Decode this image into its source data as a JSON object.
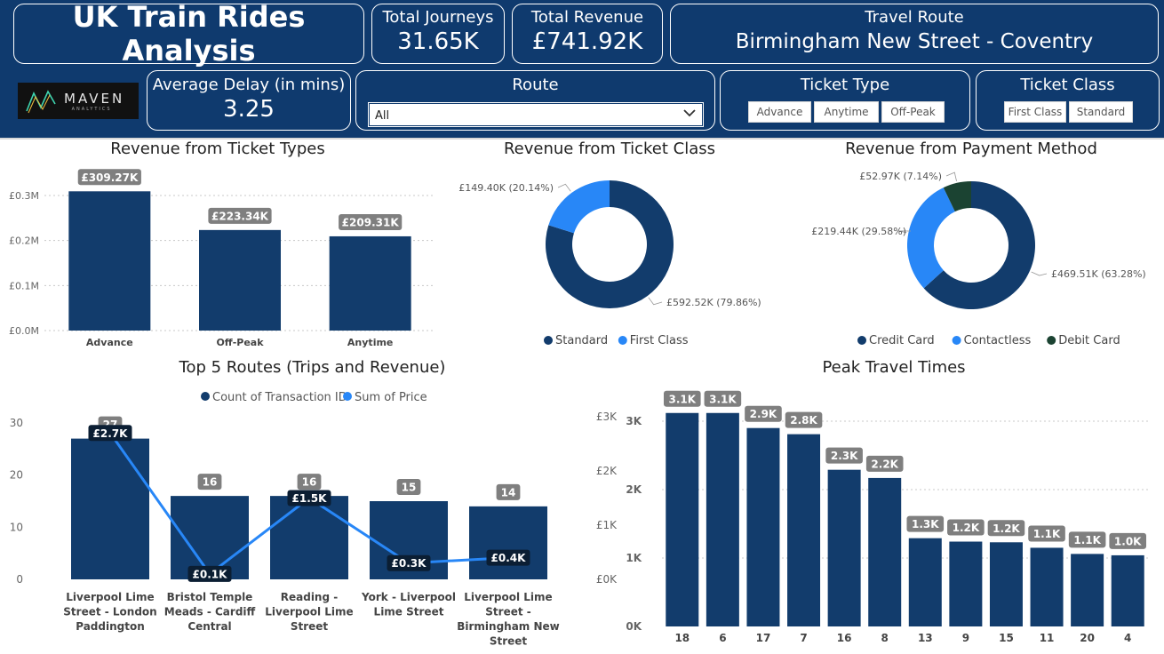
{
  "header": {
    "title": "UK Train Rides Analysis",
    "kpis": {
      "journeys_label": "Total Journeys",
      "journeys_value": "31.65K",
      "revenue_label": "Total Revenue",
      "revenue_value": "£741.92K",
      "route_label": "Travel Route",
      "route_value": "Birmingham New Street - Coventry",
      "delay_label": "Average Delay (in mins)",
      "delay_value": "3.25"
    },
    "logo": {
      "main": "MAVEN",
      "sub": "ANALYTICS",
      "icon": "maven-logo-icon"
    },
    "route_slicer": {
      "label": "Route",
      "selected": "All",
      "icon": "chevron-down-icon"
    },
    "ticket_type_slicer": {
      "label": "Ticket Type",
      "options": [
        "Advance",
        "Anytime",
        "Off-Peak"
      ]
    },
    "ticket_class_slicer": {
      "label": "Ticket Class",
      "options": [
        "First Class",
        "Standard"
      ]
    }
  },
  "colors": {
    "primary": "#0f3a6e",
    "dark_navy": "#123c6c",
    "accent_blue": "#2887f7",
    "dark_green": "#1b4332",
    "label_grey": "#7f7f7f"
  },
  "chart_data": [
    {
      "type": "bar",
      "title": "Revenue from Ticket Types",
      "categories": [
        "Advance",
        "Off-Peak",
        "Anytime"
      ],
      "values": [
        309270,
        223340,
        209310
      ],
      "data_labels": [
        "£309.27K",
        "£223.34K",
        "£209.31K"
      ],
      "y_ticks": [
        "£0.0M",
        "£0.1M",
        "£0.2M",
        "£0.3M"
      ],
      "ylim": [
        0,
        320000
      ],
      "grid": true
    },
    {
      "type": "pie",
      "title": "Revenue from Ticket Class",
      "labels": [
        "Standard",
        "First Class"
      ],
      "values": [
        592520,
        149400
      ],
      "data_labels": [
        "£592.52K (79.86%)",
        "£149.40K (20.14%)"
      ],
      "colors": [
        "#123c6c",
        "#2887f7"
      ],
      "legend": "bottom"
    },
    {
      "type": "pie",
      "title": "Revenue from Payment Method",
      "labels": [
        "Credit Card",
        "Contactless",
        "Debit Card"
      ],
      "values": [
        469510,
        219440,
        52970
      ],
      "data_labels": [
        "£469.51K (63.28%)",
        "£219.44K (29.58%)",
        "£52.97K (7.14%)"
      ],
      "colors": [
        "#123c6c",
        "#2887f7",
        "#1b4332"
      ],
      "legend": "bottom"
    },
    {
      "type": "bar",
      "title": "Top 5 Routes (Trips and Revenue)",
      "categories": [
        "Liverpool Lime Street - London Paddington",
        "Bristol Temple Meads - Cardiff Central",
        "Reading - Liverpool Lime Street",
        "York - Liverpool Lime Street",
        "Liverpool Lime Street - Birmingham New Street"
      ],
      "category_lines": [
        [
          "Liverpool Lime",
          "Street - London",
          "Paddington"
        ],
        [
          "Bristol Temple",
          "Meads - Cardiff",
          "Central"
        ],
        [
          "Reading -",
          "Liverpool Lime",
          "Street"
        ],
        [
          "York - Liverpool",
          "Lime Street"
        ],
        [
          "Liverpool Lime",
          "Street -",
          "Birmingham New",
          "Street"
        ]
      ],
      "series": [
        {
          "name": "Count of Transaction ID",
          "type": "bar",
          "values": [
            27,
            16,
            16,
            15,
            14
          ],
          "data_labels": [
            "27",
            "16",
            "16",
            "15",
            "14"
          ]
        },
        {
          "name": "Sum of Price",
          "type": "line",
          "values": [
            2700,
            100,
            1500,
            300,
            400
          ],
          "data_labels": [
            "£2.7K",
            "£0.1K",
            "£1.5K",
            "£0.3K",
            "£0.4K"
          ]
        }
      ],
      "y_ticks": [
        "0",
        "10",
        "20",
        "30"
      ],
      "y2_ticks": [
        "£0K",
        "£1K",
        "£2K",
        "£3K"
      ],
      "ylim": [
        0,
        30
      ],
      "y2lim": [
        0,
        3000
      ],
      "legend": "top"
    },
    {
      "type": "bar",
      "title": "Peak Travel Times",
      "categories": [
        "18",
        "6",
        "17",
        "7",
        "16",
        "8",
        "13",
        "9",
        "15",
        "11",
        "20",
        "4"
      ],
      "values": [
        3120,
        3120,
        2900,
        2810,
        2290,
        2170,
        1290,
        1240,
        1230,
        1150,
        1060,
        1040
      ],
      "data_labels": [
        "3.1K",
        "3.1K",
        "2.9K",
        "2.8K",
        "2.3K",
        "2.2K",
        "1.3K",
        "1.2K",
        "1.2K",
        "1.1K",
        "1.1K",
        "1.0K"
      ],
      "y_ticks": [
        "0K",
        "1K",
        "2K",
        "3K"
      ],
      "ylim": [
        0,
        3000
      ],
      "grid": true
    }
  ]
}
